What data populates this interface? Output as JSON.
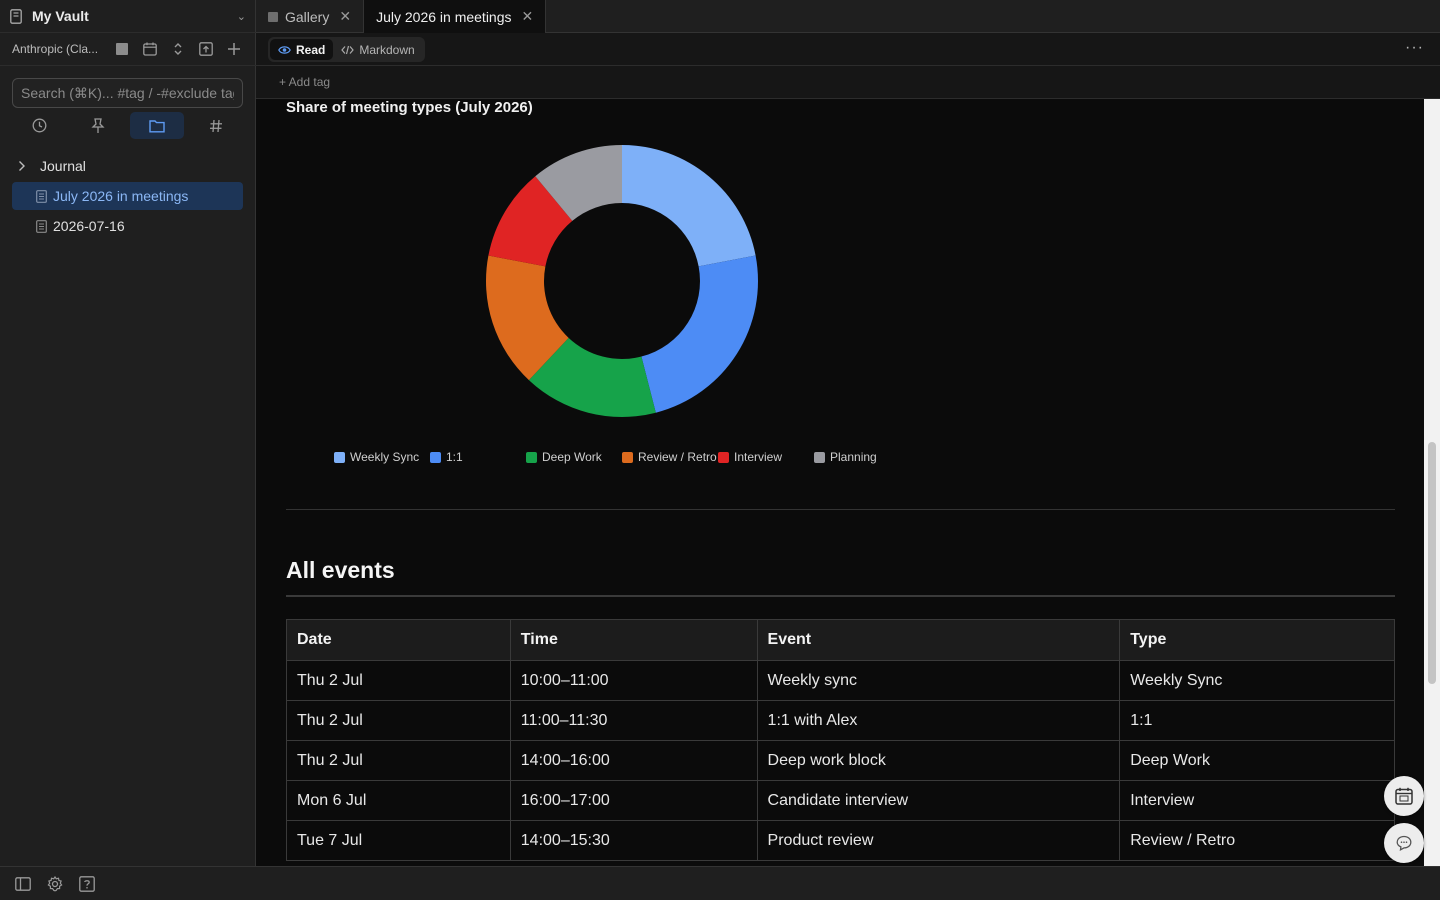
{
  "sidebar": {
    "vault_name": "My Vault",
    "account": "Anthropic (Cla...",
    "search_placeholder": "Search (⌘K)... #tag / -#exclude tag",
    "tree": [
      {
        "label": "Journal",
        "kind": "folder"
      },
      {
        "label": "July 2026 in meetings",
        "kind": "note",
        "active": true
      },
      {
        "label": "2026-07-16",
        "kind": "note"
      }
    ]
  },
  "tabs": [
    {
      "label": "Gallery",
      "active": false
    },
    {
      "label": "July 2026 in meetings",
      "active": true
    }
  ],
  "toolbar": {
    "read_label": "Read",
    "markdown_label": "Markdown",
    "add_tag_label": "+ Add tag"
  },
  "chart_data": {
    "type": "pie",
    "title": "Share of meeting types (July 2026)",
    "categories": [
      "Weekly Sync",
      "1:1",
      "Deep Work",
      "Review / Retro",
      "Interview",
      "Planning"
    ],
    "values": [
      22,
      24,
      16,
      16,
      11,
      11
    ],
    "colors": [
      "#7eb0f8",
      "#4d8cf5",
      "#16a34a",
      "#dd6b1e",
      "#e02424",
      "#9a9ba1"
    ],
    "legend": "bottom"
  },
  "events": {
    "title": "All events",
    "columns": [
      "Date",
      "Time",
      "Event",
      "Type"
    ],
    "rows": [
      [
        "Thu 2 Jul",
        "10:00–11:00",
        "Weekly sync",
        "Weekly Sync"
      ],
      [
        "Thu 2 Jul",
        "11:00–11:30",
        "1:1 with Alex",
        "1:1"
      ],
      [
        "Thu 2 Jul",
        "14:00–16:00",
        "Deep work block",
        "Deep Work"
      ],
      [
        "Mon 6 Jul",
        "16:00–17:00",
        "Candidate interview",
        "Interview"
      ],
      [
        "Tue 7 Jul",
        "14:00–15:30",
        "Product review",
        "Review / Retro"
      ]
    ]
  },
  "colors": {
    "accent": "#8bb7f5",
    "selection": "#1d3557"
  }
}
